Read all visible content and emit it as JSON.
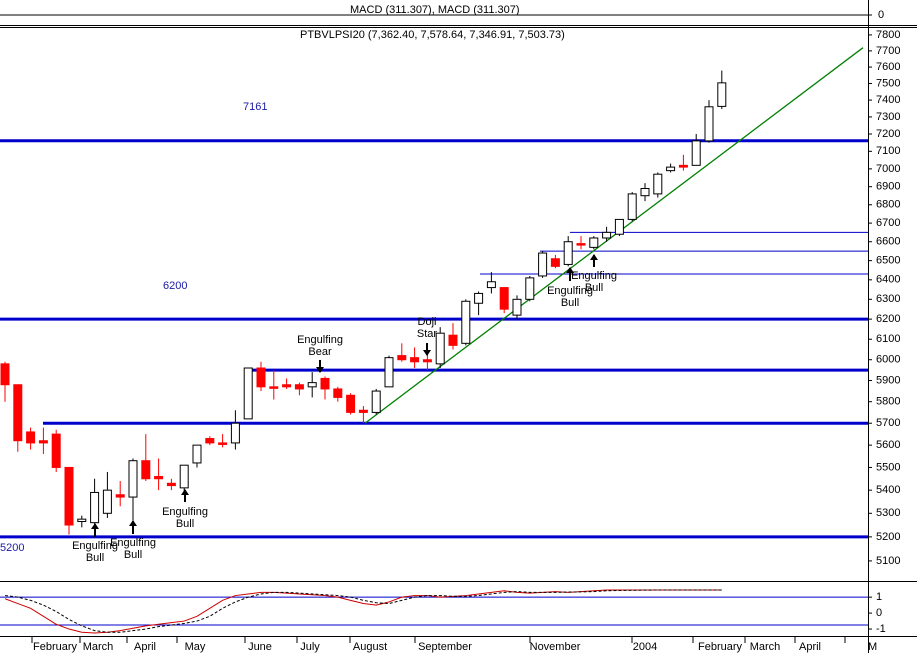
{
  "chart_data": {
    "type": "candlestick",
    "title": "PTBVLPSI20 (7,362.40, 7,578.64, 7,346.91, 7,503.73)",
    "log_scale": true,
    "ylim": [
      5022,
      7850
    ],
    "yticks": [
      5100,
      5200,
      5300,
      5400,
      5500,
      5600,
      5700,
      5800,
      5900,
      6000,
      6100,
      6200,
      6300,
      6400,
      6500,
      6600,
      6700,
      6800,
      6900,
      7000,
      7100,
      7200,
      7300,
      7400,
      7500,
      7600,
      7700,
      7800
    ],
    "up_color": "#ffffff",
    "down_color": "#ff0000",
    "open": [
      5980,
      5880,
      5660,
      5620,
      5650,
      5500,
      5265,
      5260,
      5300,
      5380,
      5370,
      5530,
      5460,
      5430,
      5410,
      5520,
      5630,
      5610,
      5610,
      5720,
      5960,
      5870,
      5880,
      5880,
      5870,
      5910,
      5860,
      5830,
      5760,
      5750,
      5870,
      6020,
      6010,
      6000,
      5980,
      6120,
      6080,
      6280,
      6360,
      6360,
      6220,
      6300,
      6420,
      6510,
      6480,
      6590,
      6570,
      6620,
      6640,
      6720,
      6850,
      6860,
      6990,
      7020,
      7020,
      7160,
      7362.4
    ],
    "high": [
      5990,
      5880,
      5680,
      5680,
      5670,
      5500,
      5290,
      5450,
      5480,
      5440,
      5540,
      5650,
      5540,
      5450,
      5510,
      5600,
      5640,
      5650,
      5760,
      5960,
      5990,
      5950,
      5910,
      5890,
      5940,
      5920,
      5870,
      5840,
      5780,
      5860,
      6020,
      6080,
      6060,
      6030,
      6160,
      6180,
      6300,
      6340,
      6440,
      6360,
      6320,
      6420,
      6550,
      6530,
      6630,
      6630,
      6630,
      6680,
      6720,
      6870,
      6920,
      6980,
      7030,
      7080,
      7200,
      7400,
      7578.64
    ],
    "low": [
      5800,
      5570,
      5580,
      5560,
      5480,
      5210,
      5240,
      5240,
      5280,
      5330,
      5270,
      5440,
      5400,
      5400,
      5380,
      5500,
      5600,
      5590,
      5580,
      5720,
      5850,
      5810,
      5860,
      5830,
      5820,
      5810,
      5800,
      5740,
      5700,
      5740,
      5870,
      5990,
      5960,
      5950,
      5960,
      6050,
      6070,
      6220,
      6330,
      6230,
      6200,
      6290,
      6410,
      6460,
      6470,
      6560,
      6560,
      6600,
      6630,
      6710,
      6820,
      6840,
      6980,
      6990,
      7020,
      7150,
      7346.91
    ],
    "close": [
      5880,
      5620,
      5610,
      5610,
      5500,
      5250,
      5275,
      5390,
      5400,
      5370,
      5530,
      5450,
      5450,
      5420,
      5510,
      5600,
      5610,
      5605,
      5700,
      5960,
      5870,
      5865,
      5870,
      5860,
      5890,
      5860,
      5820,
      5750,
      5750,
      5850,
      6010,
      6000,
      5990,
      5990,
      6130,
      6070,
      6290,
      6330,
      6390,
      6250,
      6300,
      6410,
      6540,
      6470,
      6600,
      6585,
      6620,
      6650,
      6720,
      6860,
      6890,
      6970,
      7010,
      7010,
      7160,
      7360,
      7503.73
    ],
    "months": [
      "February",
      "March",
      "April",
      "May",
      "June",
      "July",
      "August",
      "September",
      "November",
      "2004",
      "February",
      "March",
      "April",
      "M"
    ],
    "levels": [
      {
        "value": 7161,
        "label": "7161"
      },
      {
        "value": 6200,
        "label": "6200"
      },
      {
        "value": 5950
      },
      {
        "value": 5700
      },
      {
        "value": 5200,
        "label": "5200"
      }
    ],
    "thin_levels": [
      6650,
      6550,
      6430
    ],
    "trendline": [
      5700,
      7720
    ],
    "annotations": [
      [
        "Engulfing",
        "Bull"
      ],
      [
        "Engulfing",
        "Bull"
      ],
      [
        "Engulfing",
        "Bull"
      ],
      [
        "Engulfing",
        "Bear"
      ],
      [
        "Doji",
        "Star"
      ],
      [
        "Engulfing",
        "Bull"
      ],
      [
        "Engulfing",
        "Bull"
      ]
    ],
    "macd_title": "MACD (311.307), MACD (311.307)",
    "macd_yticks": [
      0
    ],
    "oscillator": {
      "ylim": [
        -1.5,
        1.7
      ],
      "yticks": [
        1,
        0,
        -1
      ],
      "levels": [
        1,
        -0.75
      ],
      "series": [
        {
          "color": "#cc0000",
          "values": [
            0.9,
            0.6,
            0.3,
            -0.2,
            -0.7,
            -1.0,
            -1.2,
            -1.25,
            -1.2,
            -1.1,
            -0.95,
            -0.8,
            -0.7,
            -0.6,
            -0.5,
            -0.2,
            0.3,
            0.8,
            1.1,
            1.2,
            1.3,
            1.3,
            1.25,
            1.2,
            1.15,
            1.1,
            1.0,
            0.8,
            0.6,
            0.5,
            0.7,
            1.0,
            1.1,
            1.1,
            1.0,
            1.05,
            1.1,
            1.2,
            1.3,
            1.4,
            1.3,
            1.25,
            1.3,
            1.35,
            1.3,
            1.35,
            1.4,
            1.45,
            1.45,
            1.45,
            1.45,
            1.45,
            1.45,
            1.45,
            1.45,
            1.45,
            1.45
          ]
        },
        {
          "color": "#000000",
          "dash": true,
          "values": [
            1.1,
            1.0,
            0.8,
            0.5,
            0.1,
            -0.4,
            -0.8,
            -1.1,
            -1.2,
            -1.2,
            -1.1,
            -1.0,
            -0.85,
            -0.75,
            -0.65,
            -0.5,
            -0.2,
            0.3,
            0.7,
            1.0,
            1.2,
            1.3,
            1.3,
            1.25,
            1.2,
            1.15,
            1.1,
            1.0,
            0.8,
            0.65,
            0.6,
            0.8,
            1.0,
            1.1,
            1.1,
            1.05,
            1.05,
            1.1,
            1.2,
            1.3,
            1.35,
            1.3,
            1.3,
            1.3,
            1.32,
            1.33,
            1.35,
            1.4,
            1.42,
            1.43,
            1.44,
            1.45,
            1.45,
            1.45,
            1.45,
            1.45,
            1.45
          ]
        }
      ]
    }
  }
}
